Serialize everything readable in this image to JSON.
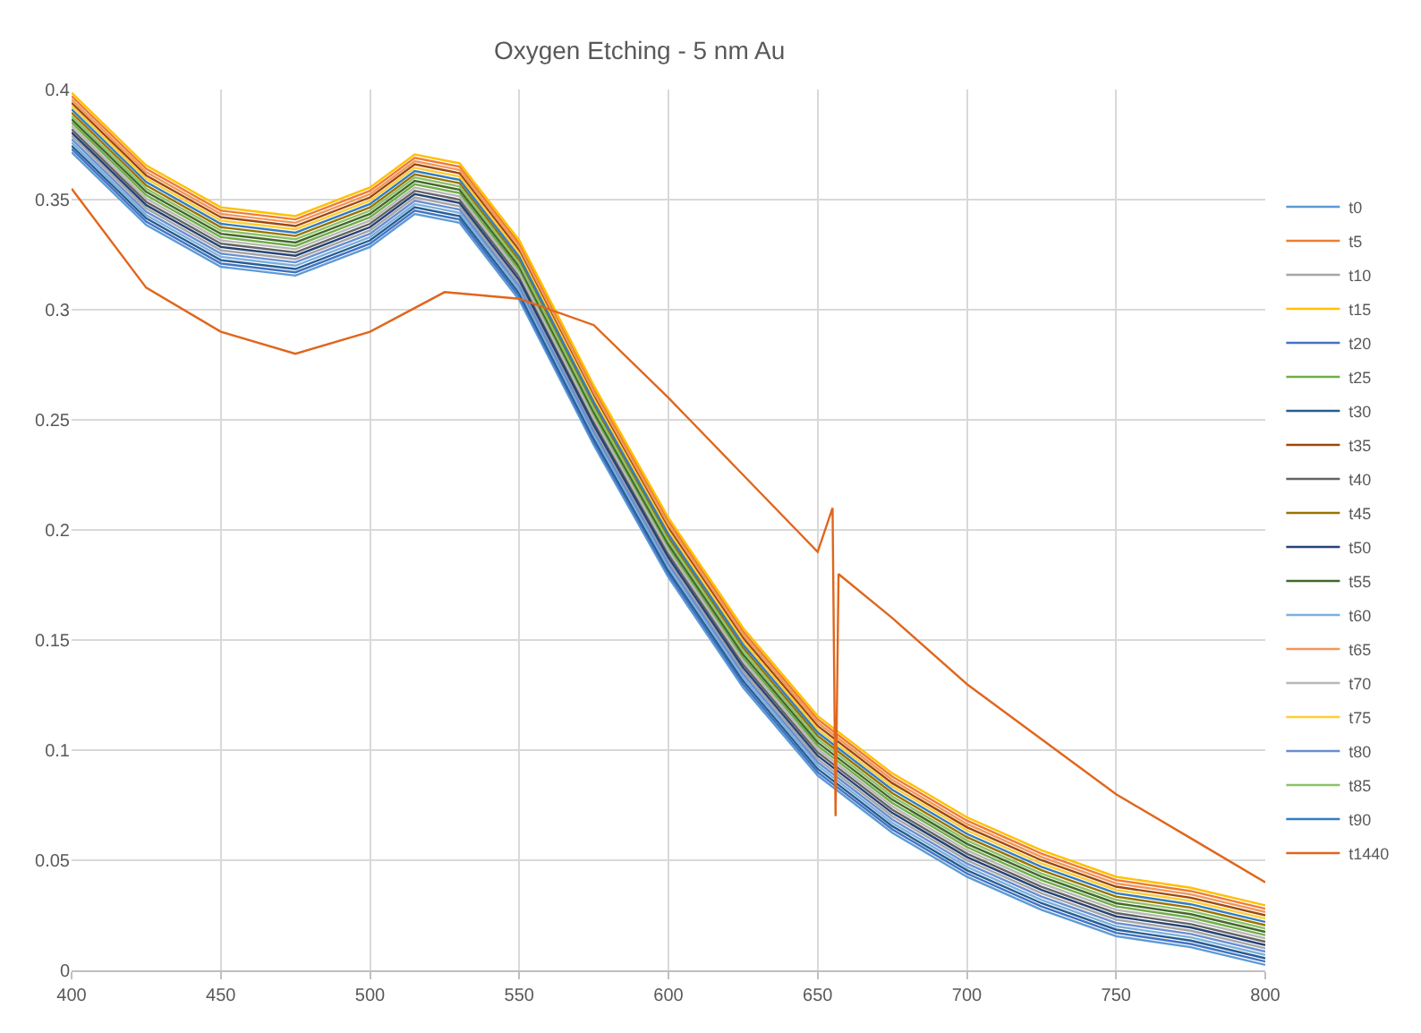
{
  "chart_data": {
    "type": "line",
    "title": "Oxygen Etching - 5 nm Au",
    "x": [
      400,
      425,
      450,
      475,
      500,
      515,
      530,
      550,
      575,
      600,
      625,
      650,
      675,
      700,
      725,
      750,
      775,
      800
    ],
    "xlim": [
      400,
      800
    ],
    "xticks": [
      400,
      450,
      500,
      550,
      600,
      650,
      700,
      750,
      800
    ],
    "ylim": [
      0,
      0.4
    ],
    "yticks": [
      0,
      0.05,
      0.1,
      0.15,
      0.2,
      0.25,
      0.3,
      0.35,
      0.4
    ],
    "grid": true,
    "legend": "right",
    "marker": "none",
    "line_style": "solid",
    "series": [
      {
        "name": "t0",
        "color": "#5b9bd5",
        "values": [
          0.3715,
          0.3385,
          0.3195,
          0.3155,
          0.3285,
          0.3435,
          0.3395,
          0.3045,
          0.2385,
          0.1785,
          0.1285,
          0.0885,
          0.0625,
          0.0425,
          0.0275,
          0.0155,
          0.0105,
          0.0025
        ]
      },
      {
        "name": "t5",
        "color": "#ed7d31",
        "values": [
          0.397,
          0.364,
          0.345,
          0.341,
          0.354,
          0.369,
          0.365,
          0.33,
          0.264,
          0.204,
          0.154,
          0.114,
          0.088,
          0.068,
          0.053,
          0.041,
          0.036,
          0.028
        ]
      },
      {
        "name": "t10",
        "color": "#a5a5a5",
        "values": [
          0.379,
          0.346,
          0.327,
          0.323,
          0.336,
          0.351,
          0.347,
          0.312,
          0.246,
          0.186,
          0.136,
          0.096,
          0.07,
          0.05,
          0.035,
          0.023,
          0.018,
          0.01
        ]
      },
      {
        "name": "t15",
        "color": "#ffc000",
        "values": [
          0.3985,
          0.3655,
          0.3465,
          0.3425,
          0.3555,
          0.3705,
          0.3665,
          0.3315,
          0.2655,
          0.2055,
          0.1555,
          0.1155,
          0.0895,
          0.0695,
          0.0545,
          0.0425,
          0.0375,
          0.0295
        ]
      },
      {
        "name": "t20",
        "color": "#4472c4",
        "values": [
          0.373,
          0.34,
          0.321,
          0.317,
          0.33,
          0.345,
          0.341,
          0.306,
          0.24,
          0.18,
          0.13,
          0.09,
          0.064,
          0.044,
          0.029,
          0.017,
          0.012,
          0.004
        ]
      },
      {
        "name": "t25",
        "color": "#70ad47",
        "values": [
          0.385,
          0.352,
          0.333,
          0.329,
          0.342,
          0.357,
          0.353,
          0.318,
          0.252,
          0.192,
          0.142,
          0.102,
          0.076,
          0.056,
          0.041,
          0.029,
          0.024,
          0.016
        ]
      },
      {
        "name": "t30",
        "color": "#255e91",
        "values": [
          0.3745,
          0.3415,
          0.3225,
          0.3185,
          0.3315,
          0.3465,
          0.3425,
          0.3075,
          0.2415,
          0.1815,
          0.1315,
          0.0915,
          0.0655,
          0.0455,
          0.0305,
          0.0185,
          0.0135,
          0.0055
        ]
      },
      {
        "name": "t35",
        "color": "#9e480e",
        "values": [
          0.394,
          0.361,
          0.342,
          0.338,
          0.351,
          0.366,
          0.362,
          0.327,
          0.261,
          0.201,
          0.151,
          0.111,
          0.085,
          0.065,
          0.05,
          0.038,
          0.033,
          0.025
        ]
      },
      {
        "name": "t40",
        "color": "#636363",
        "values": [
          0.382,
          0.349,
          0.33,
          0.326,
          0.339,
          0.354,
          0.35,
          0.315,
          0.249,
          0.189,
          0.139,
          0.099,
          0.073,
          0.053,
          0.038,
          0.026,
          0.021,
          0.013
        ]
      },
      {
        "name": "t45",
        "color": "#997300",
        "values": [
          0.3895,
          0.3565,
          0.3375,
          0.3335,
          0.3465,
          0.3615,
          0.3575,
          0.3225,
          0.2565,
          0.1965,
          0.1465,
          0.1065,
          0.0805,
          0.0605,
          0.0455,
          0.0335,
          0.0285,
          0.0205
        ]
      },
      {
        "name": "t50",
        "color": "#264478",
        "values": [
          0.3805,
          0.3475,
          0.3285,
          0.3245,
          0.3375,
          0.3525,
          0.3485,
          0.3135,
          0.2475,
          0.1875,
          0.1375,
          0.0975,
          0.0715,
          0.0515,
          0.0365,
          0.0245,
          0.0195,
          0.0115
        ]
      },
      {
        "name": "t55",
        "color": "#43682b",
        "values": [
          0.3865,
          0.3535,
          0.3345,
          0.3305,
          0.3435,
          0.3585,
          0.3545,
          0.3195,
          0.2535,
          0.1935,
          0.1435,
          0.1035,
          0.0775,
          0.0575,
          0.0425,
          0.0305,
          0.0255,
          0.0175
        ]
      },
      {
        "name": "t60",
        "color": "#7cafdd",
        "values": [
          0.376,
          0.343,
          0.324,
          0.32,
          0.333,
          0.348,
          0.344,
          0.309,
          0.243,
          0.183,
          0.133,
          0.093,
          0.067,
          0.047,
          0.032,
          0.02,
          0.015,
          0.007
        ]
      },
      {
        "name": "t65",
        "color": "#f1975a",
        "values": [
          0.3955,
          0.3625,
          0.3435,
          0.3395,
          0.3525,
          0.3675,
          0.3635,
          0.3285,
          0.2625,
          0.2025,
          0.1525,
          0.1125,
          0.0865,
          0.0665,
          0.0515,
          0.0395,
          0.0345,
          0.0265
        ]
      },
      {
        "name": "t70",
        "color": "#b7b7b7",
        "values": [
          0.3835,
          0.3505,
          0.3315,
          0.3275,
          0.3405,
          0.3555,
          0.3515,
          0.3165,
          0.2505,
          0.1905,
          0.1405,
          0.1005,
          0.0745,
          0.0545,
          0.0395,
          0.0275,
          0.0225,
          0.0145
        ]
      },
      {
        "name": "t75",
        "color": "#ffcd33",
        "values": [
          0.3925,
          0.3595,
          0.3405,
          0.3365,
          0.3495,
          0.3645,
          0.3605,
          0.3255,
          0.2595,
          0.1995,
          0.1495,
          0.1095,
          0.0835,
          0.0635,
          0.0485,
          0.0365,
          0.0315,
          0.0235
        ]
      },
      {
        "name": "t80",
        "color": "#698ed0",
        "values": [
          0.3775,
          0.3445,
          0.3255,
          0.3215,
          0.3345,
          0.3495,
          0.3455,
          0.3105,
          0.2445,
          0.1845,
          0.1345,
          0.0945,
          0.0685,
          0.0485,
          0.0335,
          0.0215,
          0.0165,
          0.0085
        ]
      },
      {
        "name": "t85",
        "color": "#8cc168",
        "values": [
          0.388,
          0.355,
          0.336,
          0.332,
          0.345,
          0.36,
          0.356,
          0.321,
          0.255,
          0.195,
          0.145,
          0.105,
          0.079,
          0.059,
          0.044,
          0.032,
          0.027,
          0.019
        ]
      },
      {
        "name": "t90",
        "color": "#327dc2",
        "values": [
          0.391,
          0.358,
          0.339,
          0.335,
          0.348,
          0.363,
          0.359,
          0.324,
          0.258,
          0.198,
          0.148,
          0.108,
          0.082,
          0.062,
          0.047,
          0.035,
          0.03,
          0.022
        ]
      },
      {
        "name": "t1440",
        "color": "#e0661c",
        "x": [
          400,
          425,
          450,
          475,
          500,
          525,
          550,
          575,
          600,
          625,
          650,
          655,
          656,
          657,
          675,
          700,
          725,
          750,
          775,
          800
        ],
        "values": [
          0.355,
          0.31,
          0.29,
          0.28,
          0.29,
          0.308,
          0.305,
          0.293,
          0.26,
          0.225,
          0.19,
          0.21,
          0.07,
          0.18,
          0.16,
          0.13,
          0.105,
          0.08,
          0.06,
          0.04
        ]
      }
    ]
  }
}
